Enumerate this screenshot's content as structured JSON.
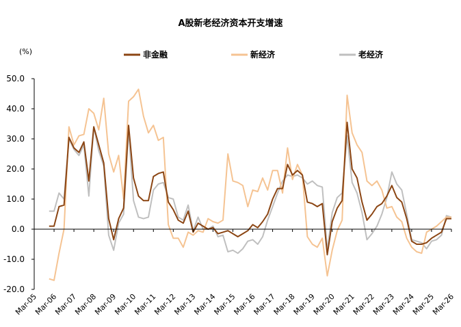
{
  "chart_data": {
    "type": "line",
    "title": "A股新老经济资本开支增速",
    "unit_label": "(%)",
    "ylim": [
      -20,
      50
    ],
    "y_ticks": [
      "50.0",
      "40.0",
      "30.0",
      "20.0",
      "10.0",
      "0.0",
      "-10.0",
      "-20.0"
    ],
    "x_ticks": [
      "Mar-05",
      "Mar-06",
      "Mar-07",
      "Mar-08",
      "Mar-09",
      "Mar-10",
      "Mar-11",
      "Mar-12",
      "Mar-13",
      "Mar-14",
      "Mar-15",
      "Mar-16",
      "Mar-17",
      "Mar-18",
      "Mar-19",
      "Mar-20",
      "Mar-21",
      "Mar-22",
      "Mar-23",
      "Mar-24",
      "Mar-25",
      "Mar-26"
    ],
    "x_start": 2005.25,
    "x_end": 2026.25,
    "legend_position": "top",
    "grid": false,
    "series": [
      {
        "name": "非金融",
        "color": "#8B4513",
        "x": [
          2006.0,
          2006.25,
          2006.5,
          2006.75,
          2007.0,
          2007.25,
          2007.5,
          2007.75,
          2008.0,
          2008.25,
          2008.5,
          2008.75,
          2009.0,
          2009.25,
          2009.5,
          2009.75,
          2010.0,
          2010.25,
          2010.5,
          2010.75,
          2011.0,
          2011.25,
          2011.5,
          2011.75,
          2012.0,
          2012.25,
          2012.5,
          2012.75,
          2013.0,
          2013.25,
          2013.5,
          2013.75,
          2014.0,
          2014.25,
          2014.5,
          2014.75,
          2015.0,
          2015.25,
          2015.5,
          2015.75,
          2016.0,
          2016.25,
          2016.5,
          2016.75,
          2017.0,
          2017.25,
          2017.5,
          2017.75,
          2018.0,
          2018.25,
          2018.5,
          2018.75,
          2019.0,
          2019.25,
          2019.5,
          2019.75,
          2020.0,
          2020.25,
          2020.5,
          2020.75,
          2021.0,
          2021.25,
          2021.5,
          2021.75,
          2022.0,
          2022.25,
          2022.5,
          2022.75,
          2023.0,
          2023.25,
          2023.5,
          2023.75,
          2024.0,
          2024.25,
          2024.5,
          2024.75,
          2025.0,
          2025.25,
          2025.5,
          2025.75,
          2026.0,
          2026.25
        ],
        "values": [
          1,
          1,
          7.5,
          8,
          30.5,
          27,
          25.5,
          29,
          16,
          34,
          28,
          22,
          3.5,
          -3.5,
          3.5,
          7,
          34.5,
          17,
          11,
          9.5,
          9.5,
          17.5,
          18.5,
          19,
          9,
          6.5,
          3,
          2,
          6,
          -1,
          2,
          1,
          0,
          0.5,
          -1.5,
          -1,
          -0.5,
          -1.5,
          -2.5,
          -1.5,
          -0.5,
          1.5,
          0.5,
          2.5,
          5,
          10,
          13.5,
          13.5,
          21.5,
          18,
          19.5,
          18,
          9,
          8.5,
          7.5,
          8.5,
          -8.5,
          2.5,
          7,
          9.5,
          35.5,
          20,
          17,
          9,
          3,
          5,
          7.5,
          8.5,
          11,
          14.5,
          10.5,
          9,
          3.5,
          -4,
          -5,
          -5,
          -4.5,
          -3,
          -2,
          -1,
          3.5,
          3.5
        ]
      },
      {
        "name": "新经济",
        "color": "#F5C392",
        "x": [
          2006.0,
          2006.25,
          2006.5,
          2006.75,
          2007.0,
          2007.25,
          2007.5,
          2007.75,
          2008.0,
          2008.25,
          2008.5,
          2008.75,
          2009.0,
          2009.25,
          2009.5,
          2009.75,
          2010.0,
          2010.25,
          2010.5,
          2010.75,
          2011.0,
          2011.25,
          2011.5,
          2011.75,
          2012.0,
          2012.25,
          2012.5,
          2012.75,
          2013.0,
          2013.25,
          2013.5,
          2013.75,
          2014.0,
          2014.25,
          2014.5,
          2014.75,
          2015.0,
          2015.25,
          2015.5,
          2015.75,
          2016.0,
          2016.25,
          2016.5,
          2016.75,
          2017.0,
          2017.25,
          2017.5,
          2017.75,
          2018.0,
          2018.25,
          2018.5,
          2018.75,
          2019.0,
          2019.25,
          2019.5,
          2019.75,
          2020.0,
          2020.25,
          2020.5,
          2020.75,
          2021.0,
          2021.25,
          2021.5,
          2021.75,
          2022.0,
          2022.25,
          2022.5,
          2022.75,
          2023.0,
          2023.25,
          2023.5,
          2023.75,
          2024.0,
          2024.25,
          2024.5,
          2024.75,
          2025.0,
          2025.25,
          2025.5,
          2025.75,
          2026.0,
          2026.25
        ],
        "values": [
          -16.5,
          -17,
          -8,
          0,
          34,
          28,
          31,
          31.5,
          40,
          38.5,
          33,
          43.5,
          25,
          19,
          24.5,
          10,
          42.5,
          44,
          46.5,
          37.5,
          32,
          34.5,
          29.5,
          30.5,
          1.5,
          -3,
          -3,
          -6,
          -1,
          -2,
          -0.5,
          -1,
          3.5,
          2.5,
          2,
          3,
          25,
          16,
          15.5,
          14.5,
          7.5,
          13,
          12.5,
          17,
          13,
          19.5,
          19.5,
          12,
          27,
          16.5,
          21.5,
          18,
          -2.5,
          -5,
          -6,
          -3,
          -15.5,
          -7,
          -0.5,
          3,
          44.5,
          32,
          28,
          25.5,
          16,
          14.5,
          16,
          13,
          7,
          7.5,
          4,
          2.5,
          -3,
          -6,
          -7.5,
          -8,
          -1,
          0,
          1,
          2.5,
          4,
          4
        ]
      },
      {
        "name": "老经济",
        "color": "#BFBFBF",
        "x": [
          2006.0,
          2006.25,
          2006.5,
          2006.75,
          2007.0,
          2007.25,
          2007.5,
          2007.75,
          2008.0,
          2008.25,
          2008.5,
          2008.75,
          2009.0,
          2009.25,
          2009.5,
          2009.75,
          2010.0,
          2010.25,
          2010.5,
          2010.75,
          2011.0,
          2011.25,
          2011.5,
          2011.75,
          2012.0,
          2012.25,
          2012.5,
          2012.75,
          2013.0,
          2013.25,
          2013.5,
          2013.75,
          2014.0,
          2014.25,
          2014.5,
          2014.75,
          2015.0,
          2015.25,
          2015.5,
          2015.75,
          2016.0,
          2016.25,
          2016.5,
          2016.75,
          2017.0,
          2017.25,
          2017.5,
          2017.75,
          2018.0,
          2018.25,
          2018.5,
          2018.75,
          2019.0,
          2019.25,
          2019.5,
          2019.75,
          2020.0,
          2020.25,
          2020.5,
          2020.75,
          2021.0,
          2021.25,
          2021.5,
          2021.75,
          2022.0,
          2022.25,
          2022.5,
          2022.75,
          2023.0,
          2023.25,
          2023.5,
          2023.75,
          2024.0,
          2024.25,
          2024.5,
          2024.75,
          2025.0,
          2025.25,
          2025.5,
          2025.75,
          2026.0,
          2026.25
        ],
        "values": [
          6,
          6,
          12,
          10,
          30,
          26.5,
          24.5,
          28,
          11,
          34,
          26,
          21,
          -2,
          -7,
          2,
          5,
          33,
          9.5,
          4,
          3.5,
          4,
          13,
          15,
          15.5,
          10.5,
          10,
          4,
          3,
          8,
          -0.5,
          4,
          0,
          0,
          1,
          -2.5,
          -2,
          -7.5,
          -7,
          -8,
          -6.5,
          -4,
          -3.5,
          -5,
          -2.5,
          3,
          7.5,
          12,
          16,
          18,
          17.5,
          18,
          17,
          15,
          16,
          14.5,
          14,
          -7,
          5.5,
          10.5,
          12,
          31,
          15.5,
          12,
          5.5,
          -3.5,
          -1.5,
          1,
          5,
          10.5,
          19,
          15,
          13,
          5,
          -3.5,
          -4,
          -4.5,
          -6.5,
          -4,
          -3.5,
          -2,
          4.5,
          4
        ]
      }
    ]
  }
}
